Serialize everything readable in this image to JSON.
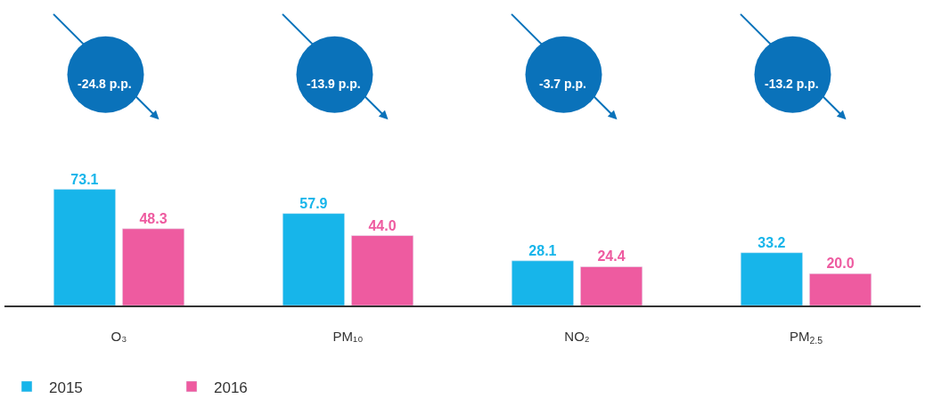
{
  "chart_data": {
    "type": "bar",
    "categories": [
      "O₃",
      "PM₁₀",
      "NO₂",
      "PM$_{2.5}$"
    ],
    "series": [
      {
        "name": "2015",
        "color": "#17b5ea",
        "values": [
          73.1,
          57.9,
          28.1,
          33.2
        ],
        "value_labels": [
          "73.1",
          "57.9",
          "28.1",
          "33.2"
        ]
      },
      {
        "name": "2016",
        "color": "#ee5ba0",
        "values": [
          48.3,
          44.0,
          24.4,
          20.0
        ],
        "value_labels": [
          "48.3",
          "44.0",
          "24.4",
          "20.0"
        ]
      }
    ],
    "legend": "bottom left",
    "annotations": [
      "-24.8 p.p.",
      "-13.9 p.p.",
      "-3.7 p.p.",
      "-13.2 p.p."
    ]
  }
}
